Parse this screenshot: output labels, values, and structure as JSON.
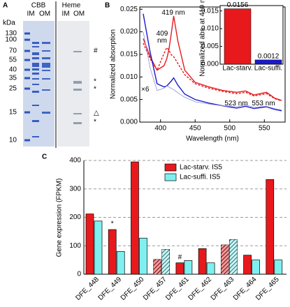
{
  "gel": {
    "panel": "A",
    "groups": [
      "CBB",
      "Heme"
    ],
    "lanes": [
      "IM",
      "OM",
      "IM",
      "OM"
    ],
    "unit": "kDa",
    "ladder": [
      130,
      100,
      70,
      55,
      40,
      35,
      25,
      15,
      10
    ],
    "marks": [
      "#",
      "*",
      "*",
      "△",
      "*"
    ]
  },
  "chart_data": [
    {
      "type": "line",
      "panel": "B",
      "ylabel": "Normalized absorption",
      "xlabel": "Wavelength (nm)",
      "annotations": [
        "409\nnm",
        "419 nm",
        "523 nm",
        "553 nm",
        "×6"
      ],
      "x": [
        375,
        385,
        395,
        405,
        409,
        412,
        415,
        419,
        425,
        435,
        450,
        470,
        490,
        510,
        523,
        535,
        553,
        565,
        575
      ],
      "series": [
        {
          "color": "#e8191c",
          "style": "solid",
          "values": [
            0.0185,
            0.0145,
            0.0115,
            0.0125,
            0.014,
            0.016,
            0.019,
            0.0235,
            0.018,
            0.0115,
            0.0088,
            0.0078,
            0.007,
            0.0066,
            0.0069,
            0.006,
            0.0066,
            0.0053,
            0.0048
          ]
        },
        {
          "color": "#e8191c",
          "style": "dashed",
          "values": [
            0.0175,
            0.014,
            0.0115,
            0.0152,
            0.0165,
            0.016,
            0.015,
            0.0145,
            0.013,
            0.0105,
            0.0085,
            0.0075,
            0.0068,
            0.0063,
            0.0066,
            0.0058,
            0.0063,
            0.0052,
            0.0047
          ]
        },
        {
          "color": "#1a1acc",
          "style": "solid",
          "values": [
            0.024,
            0.0155,
            0.0085,
            0.0078,
            0.008,
            0.0085,
            0.009,
            0.0098,
            0.0082,
            0.0062,
            0.005,
            0.0042,
            0.0036,
            0.0031,
            0.0035,
            0.003,
            0.0034,
            0.0028,
            0.0025
          ]
        },
        {
          "color": "#8f8fd8",
          "style": "thin",
          "values": [
            0.02,
            0.012,
            0.007,
            0.0075,
            0.008,
            0.0078,
            0.0075,
            0.0072,
            0.0065,
            0.0055,
            0.0045,
            0.004,
            0.0036,
            0.0034,
            0.0038,
            0.0033,
            0.0035,
            0.003,
            0.0027
          ]
        }
      ],
      "xlim": [
        370,
        580
      ],
      "ylim": [
        0,
        0.0255
      ],
      "xticks": [
        400,
        450,
        500,
        550
      ],
      "yticks": [
        {
          "value": 0,
          "label": "0.000"
        },
        0.005,
        {
          "value": 0.01,
          "label": "0.010"
        },
        0.015,
        {
          "value": 0.02,
          "label": "0.020"
        },
        0.025
      ]
    },
    {
      "type": "bar",
      "ylabel": "Normalized abs. at 419 nm",
      "categories": [
        "Lac-starv.",
        "Lac-suffi."
      ],
      "values": [
        0.0156,
        0.0012
      ],
      "colors": [
        "#e8191c",
        "#1a1acc"
      ],
      "ylim": [
        0,
        0.0165
      ],
      "yticks": [
        {
          "value": 0,
          "label": "0.000"
        },
        0.005,
        {
          "value": 0.01,
          "label": "0.010"
        },
        0.015
      ]
    },
    {
      "type": "grouped-bar",
      "panel": "C",
      "ylabel": "Gene expression (FPKM)",
      "legend": "top-right",
      "grid": true,
      "categories": [
        "DFE_448",
        "DFE_449",
        "DFE_450",
        "DFE_457",
        "DFE_461",
        "DFE_462",
        "DFE_463",
        "DFE_464",
        "DFE_465"
      ],
      "hatched": [
        false,
        false,
        false,
        true,
        false,
        false,
        true,
        false,
        false
      ],
      "series": [
        {
          "name": "Lac-starv. IS5",
          "color": "#e8191c",
          "values": [
            212,
            157,
            395,
            52,
            40,
            90,
            103,
            67,
            333
          ]
        },
        {
          "name": "Lac-suffi. IS5",
          "color": "#7ff0f0",
          "values": [
            187,
            80,
            127,
            87,
            48,
            40,
            122,
            50,
            50
          ]
        }
      ],
      "annotations": [
        "*",
        "#"
      ],
      "ylim": [
        0,
        400
      ],
      "yticks": [
        0,
        100,
        200,
        300,
        400
      ]
    }
  ]
}
